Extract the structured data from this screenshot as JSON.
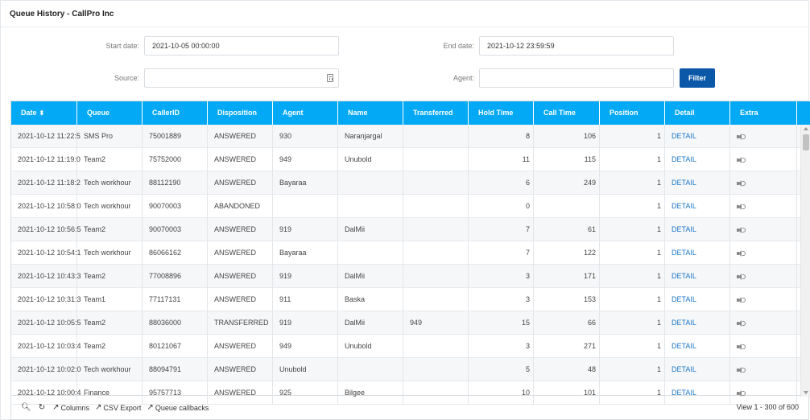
{
  "title": "Queue History - CallPro Inc",
  "form": {
    "start_label": "Start date:",
    "start_value": "2021-10-05 00:00:00",
    "end_label": "End date:",
    "end_value": "2021-10-12 23:59:59",
    "source_label": "Source:",
    "source_value": "",
    "agent_label": "Agent:",
    "agent_value": "",
    "filter_label": "Filter"
  },
  "columns": [
    "Date",
    "Queue",
    "CallerID",
    "Disposition",
    "Agent",
    "Name",
    "Transferred",
    "Hold Time",
    "Call Time",
    "Position",
    "Detail",
    "Extra"
  ],
  "sort_indicator": "⬍",
  "rows": [
    {
      "date": "2021-10-12 11:22:5",
      "queue": "SMS Pro",
      "callerid": "75001889",
      "disposition": "ANSWERED",
      "agent": "930",
      "name": "Naranjargal",
      "transferred": "",
      "hold": "8",
      "call": "106",
      "position": "1",
      "detail": "DETAIL"
    },
    {
      "date": "2021-10-12 11:19:0",
      "queue": "Team2",
      "callerid": "75752000",
      "disposition": "ANSWERED",
      "agent": "949",
      "name": "Unubold",
      "transferred": "",
      "hold": "11",
      "call": "115",
      "position": "1",
      "detail": "DETAIL"
    },
    {
      "date": "2021-10-12 11:18:2",
      "queue": "Tech workhour",
      "callerid": "88112190",
      "disposition": "ANSWERED",
      "agent": "Bayaraa",
      "name": "",
      "transferred": "",
      "hold": "6",
      "call": "249",
      "position": "1",
      "detail": "DETAIL"
    },
    {
      "date": "2021-10-12 10:58:0",
      "queue": "Tech workhour",
      "callerid": "90070003",
      "disposition": "ABANDONED",
      "agent": "",
      "name": "",
      "transferred": "",
      "hold": "0",
      "call": "",
      "position": "1",
      "detail": "DETAIL"
    },
    {
      "date": "2021-10-12 10:56:5",
      "queue": "Team2",
      "callerid": "90070003",
      "disposition": "ANSWERED",
      "agent": "919",
      "name": "DalMii",
      "transferred": "",
      "hold": "7",
      "call": "61",
      "position": "1",
      "detail": "DETAIL"
    },
    {
      "date": "2021-10-12 10:54:1",
      "queue": "Tech workhour",
      "callerid": "86066162",
      "disposition": "ANSWERED",
      "agent": "Bayaraa",
      "name": "",
      "transferred": "",
      "hold": "7",
      "call": "122",
      "position": "1",
      "detail": "DETAIL"
    },
    {
      "date": "2021-10-12 10:43:3",
      "queue": "Team2",
      "callerid": "77008896",
      "disposition": "ANSWERED",
      "agent": "919",
      "name": "DalMii",
      "transferred": "",
      "hold": "3",
      "call": "171",
      "position": "1",
      "detail": "DETAIL"
    },
    {
      "date": "2021-10-12 10:31:3",
      "queue": "Team1",
      "callerid": "77117131",
      "disposition": "ANSWERED",
      "agent": "911",
      "name": "Baska",
      "transferred": "",
      "hold": "3",
      "call": "153",
      "position": "1",
      "detail": "DETAIL"
    },
    {
      "date": "2021-10-12 10:05:5",
      "queue": "Team2",
      "callerid": "88036000",
      "disposition": "TRANSFERRED",
      "agent": "919",
      "name": "DalMii",
      "transferred": "949",
      "hold": "15",
      "call": "66",
      "position": "1",
      "detail": "DETAIL"
    },
    {
      "date": "2021-10-12 10:03:4",
      "queue": "Team2",
      "callerid": "80121067",
      "disposition": "ANSWERED",
      "agent": "949",
      "name": "Unubold",
      "transferred": "",
      "hold": "3",
      "call": "271",
      "position": "1",
      "detail": "DETAIL"
    },
    {
      "date": "2021-10-12 10:02:0",
      "queue": "Tech workhour",
      "callerid": "88094791",
      "disposition": "ANSWERED",
      "agent": "Unubold",
      "name": "",
      "transferred": "",
      "hold": "5",
      "call": "48",
      "position": "1",
      "detail": "DETAIL"
    },
    {
      "date": "2021-10-12 10:00:4",
      "queue": "Finance",
      "callerid": "95757713",
      "disposition": "ANSWERED",
      "agent": "925",
      "name": "Bilgee",
      "transferred": "",
      "hold": "10",
      "call": "101",
      "position": "1",
      "detail": "DETAIL"
    }
  ],
  "footer": {
    "search_icon": "search-icon",
    "refresh_icon": "refresh-icon",
    "columns_label": "Columns",
    "csv_label": "CSV Export",
    "callbacks_label": "Queue callbacks",
    "pager_text": "View 1 - 300 of 600"
  },
  "colors": {
    "header": "#03a9f4",
    "filter_button": "#0b58a8",
    "link": "#1976c8"
  }
}
